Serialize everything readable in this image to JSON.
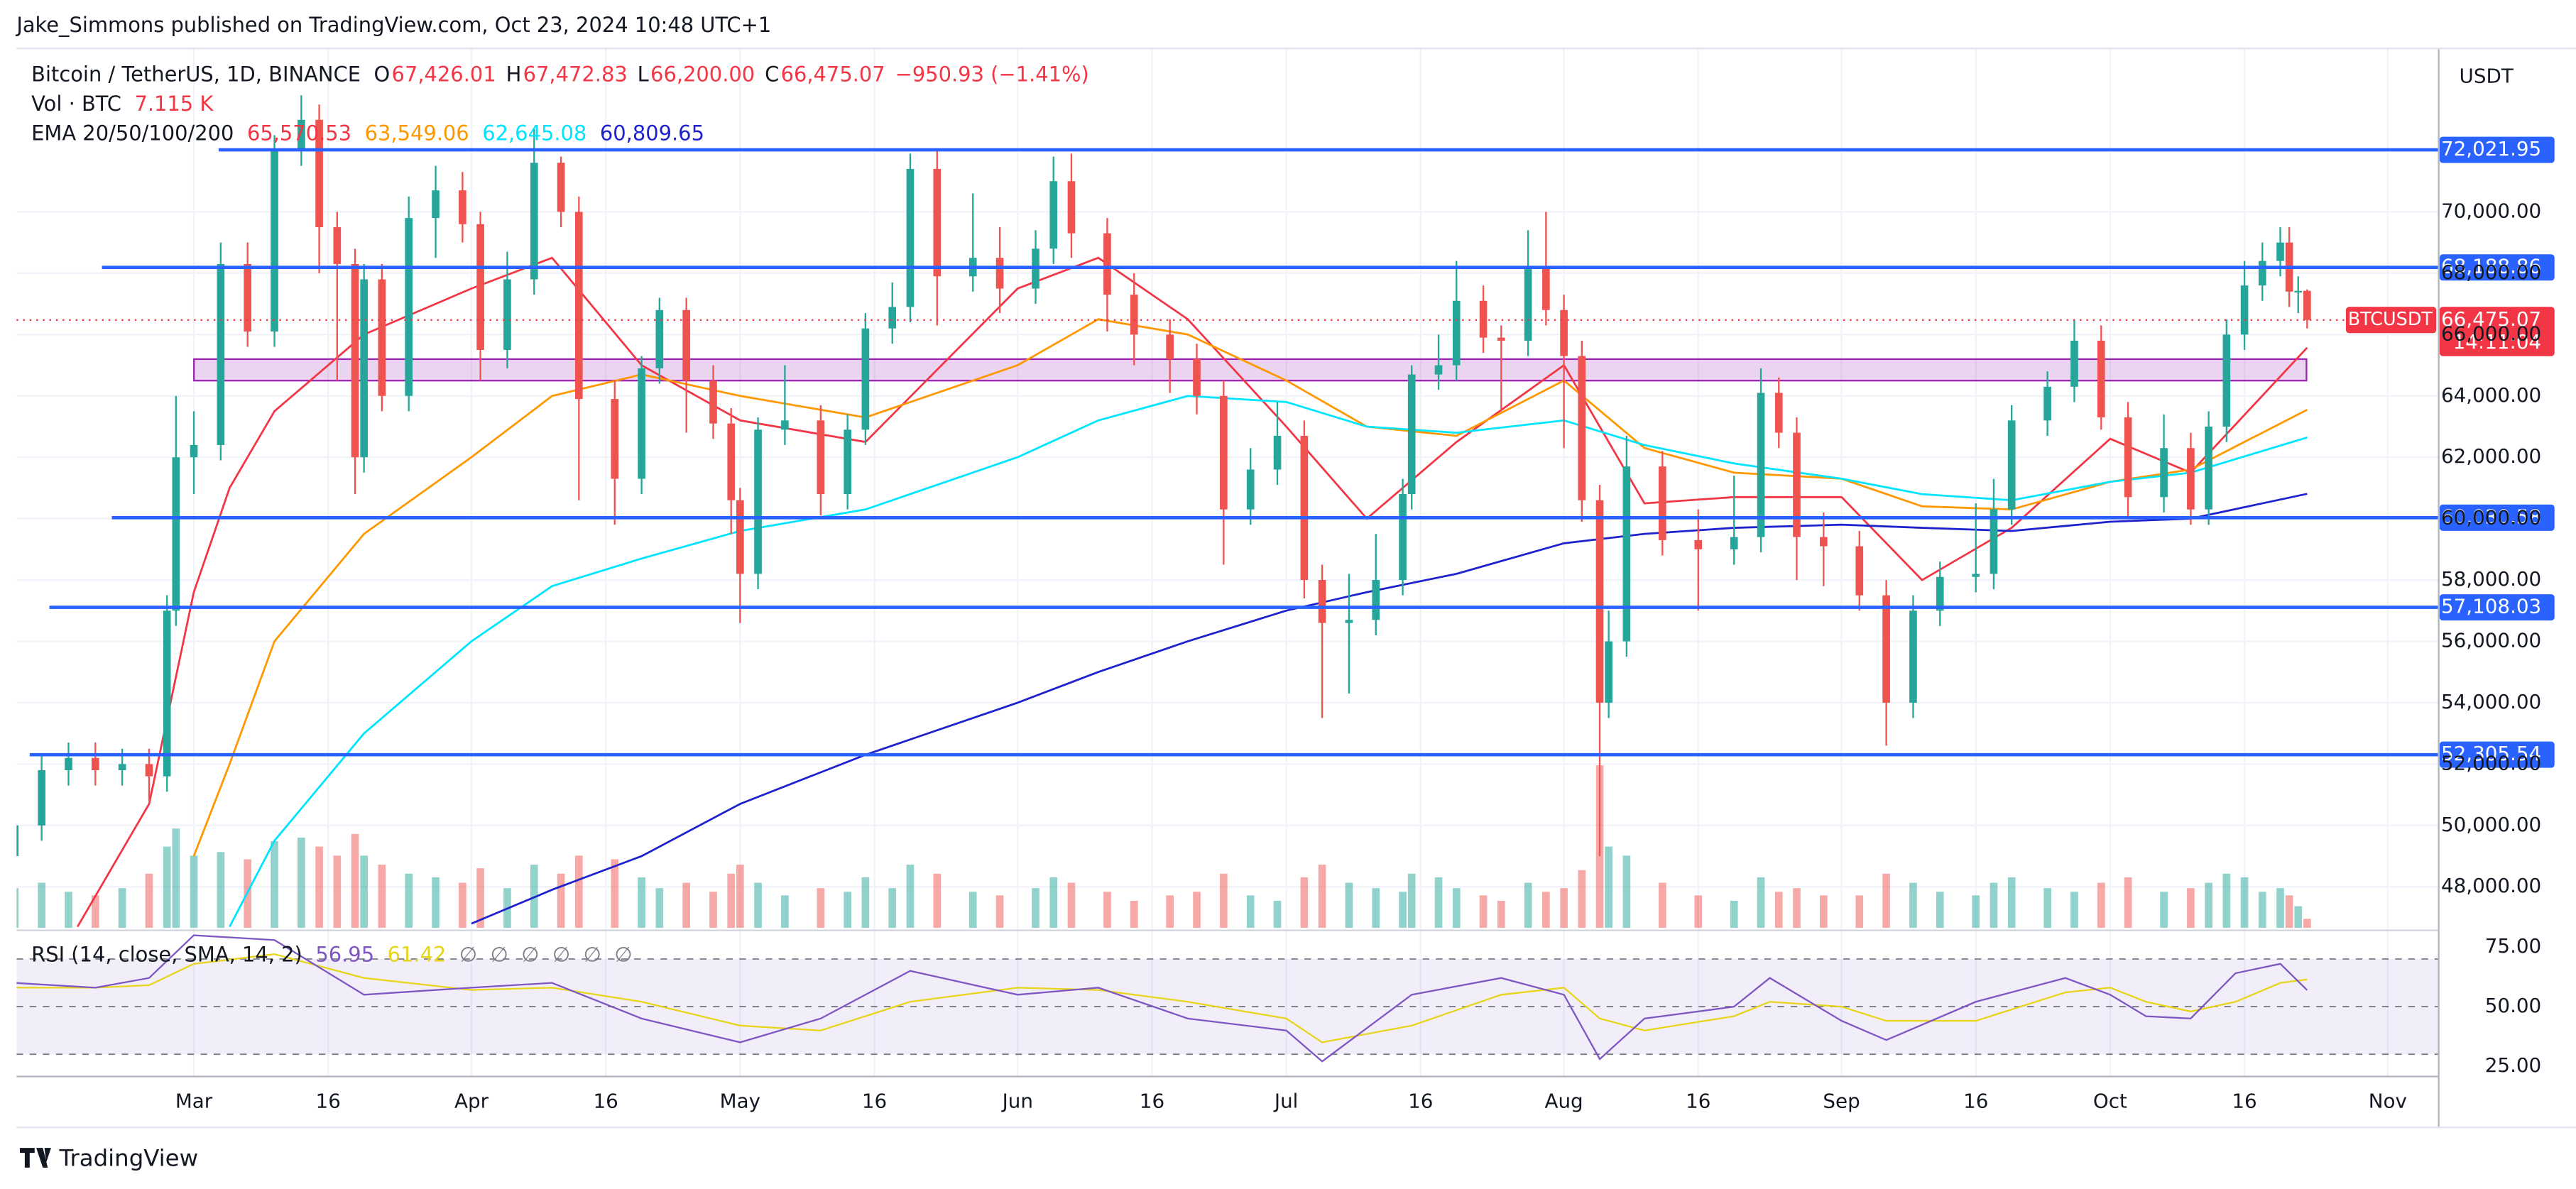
{
  "header": {
    "published": "Jake_Simmons published on TradingView.com, Oct 23, 2024 10:48 UTC+1",
    "symbol": "Bitcoin / TetherUS, 1D, BINANCE",
    "ohlc": [
      {
        "key": "O",
        "value": "67,426.01"
      },
      {
        "key": "H",
        "value": "67,472.83"
      },
      {
        "key": "L",
        "value": "66,200.00"
      },
      {
        "key": "C",
        "value": "66,475.07"
      }
    ],
    "change": "−950.93 (−1.41%)",
    "volume_title": "Vol · BTC",
    "volume_value": "7.115 K",
    "currency": "USDT"
  },
  "chart_data": {
    "type": "candlestick",
    "xlim": [
      41.2,
      311.6
    ],
    "xticks": [
      {
        "value": 61,
        "label": "Mar"
      },
      {
        "value": 76,
        "label": "16"
      },
      {
        "value": 92,
        "label": "Apr"
      },
      {
        "value": 107,
        "label": "16"
      },
      {
        "value": 122,
        "label": "May"
      },
      {
        "value": 137,
        "label": "16"
      },
      {
        "value": 153,
        "label": "Jun"
      },
      {
        "value": 168,
        "label": "16"
      },
      {
        "value": 183,
        "label": "Jul"
      },
      {
        "value": 198,
        "label": "16"
      },
      {
        "value": 214,
        "label": "Aug"
      },
      {
        "value": 229,
        "label": "16"
      },
      {
        "value": 245,
        "label": "Sep"
      },
      {
        "value": 260,
        "label": "16"
      },
      {
        "value": 275,
        "label": "Oct"
      },
      {
        "value": 290,
        "label": "16"
      },
      {
        "value": 306,
        "label": "Nov"
      }
    ],
    "ylim": [
      46660,
      75300
    ],
    "yticks": [
      {
        "value": 48000,
        "label": "48,000.00"
      },
      {
        "value": 50000,
        "label": "50,000.00"
      },
      {
        "value": 52000,
        "label": "52,000.00"
      },
      {
        "value": 54000,
        "label": "54,000.00"
      },
      {
        "value": 56000,
        "label": "56,000.00"
      },
      {
        "value": 58000,
        "label": "58,000.00"
      },
      {
        "value": 60000,
        "label": "60,000.00"
      },
      {
        "value": 62000,
        "label": "62,000.00"
      },
      {
        "value": 64000,
        "label": "64,000.00"
      },
      {
        "value": 66000,
        "label": "66,000.00"
      },
      {
        "value": 68000,
        "label": "68,000.00"
      },
      {
        "value": 70000,
        "label": "70,000.00"
      }
    ],
    "grid": true,
    "up_color": "#26a69a",
    "down_color": "#ef5350",
    "volume_ylim": [
      0,
      100
    ],
    "candles": {
      "x": [
        41,
        44,
        47,
        50,
        53,
        56,
        58,
        59,
        61,
        64,
        67,
        70,
        73,
        75,
        77,
        79,
        80,
        82,
        85,
        88,
        91,
        93,
        96,
        99,
        102,
        104,
        108,
        111,
        113,
        116,
        119,
        121,
        122,
        124,
        127,
        131,
        134,
        136,
        139,
        141,
        144,
        148,
        151,
        155,
        157,
        159,
        163,
        166,
        170,
        173,
        176,
        179,
        182,
        185,
        187,
        190,
        193,
        196,
        197,
        200,
        202,
        205,
        207,
        210,
        212,
        214,
        216,
        218,
        219,
        221,
        225,
        229,
        233,
        236,
        238,
        240,
        243,
        247,
        250,
        253,
        256,
        260,
        262,
        264,
        268,
        271,
        274,
        277,
        281,
        284,
        286,
        288,
        290,
        292,
        294,
        295,
        296,
        297
      ],
      "open": [
        49000,
        50000,
        51800,
        52200,
        51800,
        52000,
        51600,
        57000,
        62000,
        62400,
        68300,
        66100,
        72000,
        73000,
        69500,
        68300,
        62000,
        67800,
        64000,
        69800,
        70700,
        69600,
        65500,
        67800,
        71600,
        70000,
        63900,
        61300,
        64900,
        66800,
        64500,
        63100,
        60600,
        58200,
        62900,
        63200,
        60800,
        62900,
        66200,
        66900,
        71400,
        67900,
        68500,
        67500,
        68800,
        71000,
        69300,
        67300,
        66000,
        65200,
        64000,
        60300,
        61600,
        62700,
        58000,
        56600,
        56700,
        58000,
        60800,
        64700,
        65000,
        67100,
        65900,
        65800,
        68200,
        66800,
        65300,
        60600,
        54000,
        56000,
        61700,
        59300,
        59000,
        59400,
        64100,
        62800,
        59400,
        59100,
        57500,
        54000,
        57000,
        58100,
        58200,
        60300,
        63200,
        64300,
        65800,
        63300,
        60700,
        62300,
        60300,
        63000,
        66000,
        67600,
        68400,
        69000,
        67400,
        67426.01
      ],
      "high": [
        50500,
        52300,
        52700,
        52700,
        52500,
        52500,
        57500,
        64000,
        63500,
        69000,
        69000,
        72500,
        73800,
        73500,
        70000,
        68800,
        68300,
        68300,
        70500,
        71500,
        71300,
        70000,
        68700,
        72700,
        71800,
        70500,
        64500,
        65300,
        67200,
        67200,
        65000,
        63600,
        61000,
        63300,
        65000,
        63700,
        63400,
        66700,
        67700,
        71900,
        72000,
        70600,
        69500,
        69400,
        71800,
        71900,
        69800,
        68000,
        66500,
        65700,
        64500,
        62300,
        63800,
        63200,
        58500,
        58200,
        59500,
        61300,
        65000,
        66000,
        68400,
        67600,
        66300,
        69400,
        70000,
        67300,
        65800,
        61100,
        57000,
        62700,
        62200,
        60300,
        61400,
        64900,
        64600,
        63300,
        60200,
        59600,
        58000,
        57500,
        58600,
        60500,
        61300,
        63700,
        64800,
        66500,
        66300,
        63800,
        63400,
        62800,
        63500,
        66500,
        68400,
        69000,
        69500,
        69500,
        67900,
        67472.83
      ],
      "low": [
        48500,
        49500,
        51300,
        51300,
        51300,
        50800,
        51100,
        56500,
        60800,
        61900,
        65600,
        65600,
        71500,
        68000,
        64500,
        60800,
        61500,
        63500,
        63500,
        68500,
        69000,
        64500,
        64900,
        67300,
        69500,
        60600,
        59800,
        60800,
        64400,
        62800,
        62600,
        59500,
        56600,
        57700,
        62400,
        60100,
        60300,
        62400,
        65700,
        66400,
        66300,
        67400,
        66700,
        67000,
        68300,
        68500,
        66100,
        65000,
        64100,
        63400,
        58500,
        59800,
        61100,
        57400,
        53500,
        54300,
        56200,
        57500,
        60300,
        64200,
        64500,
        65400,
        63500,
        65300,
        66300,
        62300,
        59900,
        49000,
        53500,
        55500,
        58800,
        57000,
        58500,
        58900,
        62300,
        58000,
        57800,
        57000,
        52600,
        53500,
        56500,
        57600,
        57700,
        59800,
        62700,
        63800,
        62900,
        60000,
        60200,
        59800,
        59800,
        62500,
        65500,
        67100,
        67900,
        66900,
        66700,
        66200
      ],
      "close": [
        50000,
        51800,
        52200,
        51800,
        52000,
        51600,
        57000,
        62000,
        62400,
        68300,
        66100,
        72000,
        73000,
        69500,
        68300,
        62000,
        67800,
        64000,
        69800,
        70700,
        69600,
        65500,
        67800,
        71600,
        70000,
        63900,
        61300,
        64900,
        66800,
        64500,
        63100,
        60600,
        58200,
        62900,
        63200,
        60800,
        62900,
        66200,
        66900,
        71400,
        67900,
        68500,
        67500,
        68800,
        71000,
        69300,
        67300,
        66000,
        65200,
        64000,
        60300,
        61600,
        62700,
        58000,
        56600,
        56700,
        58000,
        60800,
        64700,
        65000,
        67100,
        65900,
        65800,
        68200,
        66800,
        65300,
        60600,
        54000,
        56000,
        61700,
        59300,
        59000,
        59400,
        64100,
        62800,
        59400,
        59100,
        57500,
        54000,
        57000,
        58100,
        58200,
        60300,
        63200,
        64300,
        65800,
        63300,
        60700,
        62300,
        60300,
        63000,
        66000,
        67600,
        68400,
        69000,
        67400,
        67426.01,
        66475.07
      ],
      "volume": [
        22,
        25,
        20,
        18,
        22,
        30,
        45,
        55,
        40,
        42,
        38,
        48,
        50,
        45,
        40,
        52,
        40,
        35,
        30,
        28,
        25,
        33,
        22,
        35,
        30,
        40,
        38,
        28,
        22,
        25,
        20,
        30,
        35,
        25,
        18,
        22,
        20,
        28,
        22,
        35,
        30,
        20,
        18,
        22,
        28,
        25,
        20,
        15,
        18,
        20,
        30,
        18,
        15,
        28,
        35,
        25,
        22,
        20,
        30,
        28,
        22,
        18,
        15,
        25,
        20,
        22,
        32,
        90,
        45,
        40,
        25,
        18,
        15,
        28,
        20,
        22,
        18,
        18,
        30,
        25,
        20,
        18,
        25,
        28,
        22,
        20,
        25,
        28,
        20,
        22,
        25,
        30,
        28,
        20,
        22,
        18,
        12,
        5
      ]
    },
    "ema_title": "EMA 20/50/100/200",
    "ema_x": [
      48,
      56,
      61,
      65,
      70,
      80,
      92,
      101,
      111,
      122,
      136,
      153,
      162,
      172,
      183,
      192,
      202,
      214,
      223,
      233,
      245,
      254,
      264,
      275,
      284,
      297
    ],
    "series": [
      {
        "color": "#f23645",
        "legend_value": "65,570.53",
        "values": [
          46700,
          50700,
          57600,
          61000,
          63500,
          66000,
          67500,
          68500,
          65000,
          63200,
          62500,
          67500,
          68500,
          66500,
          63000,
          60000,
          62500,
          65000,
          60500,
          60700,
          60700,
          58000,
          59700,
          62600,
          61500,
          65570.53
        ]
      },
      {
        "color": "#ff9800",
        "legend_value": "63,549.06",
        "values": [
          null,
          null,
          49000,
          52000,
          56000,
          59500,
          62000,
          64000,
          64700,
          64000,
          63300,
          65000,
          66500,
          66000,
          64500,
          63000,
          62700,
          64500,
          62300,
          61500,
          61300,
          60400,
          60300,
          61200,
          61600,
          63549.06
        ]
      },
      {
        "color": "#00e5ff",
        "legend_value": "62,645.08",
        "values": [
          null,
          null,
          null,
          46700,
          49500,
          53000,
          56000,
          57800,
          58700,
          59600,
          60300,
          62000,
          63200,
          64000,
          63800,
          63000,
          62800,
          63200,
          62400,
          61800,
          61300,
          60800,
          60600,
          61200,
          61500,
          62645.08
        ]
      },
      {
        "color": "#1e22cc",
        "legend_value": "60,809.65",
        "values": [
          null,
          null,
          null,
          null,
          null,
          null,
          46800,
          47900,
          49000,
          50700,
          52300,
          54000,
          55000,
          56000,
          57000,
          57600,
          58200,
          59200,
          59500,
          59700,
          59800,
          59700,
          59600,
          59900,
          60000,
          60809.65
        ]
      }
    ],
    "levels": [
      {
        "value": 72021.95,
        "label": "72,021.95"
      },
      {
        "value": 68188.86,
        "label": "68,188.86"
      },
      {
        "value": 60030.58,
        "label": "60,030.58"
      },
      {
        "value": 57108.03,
        "label": "57,108.03"
      },
      {
        "value": 52305.54,
        "label": "52,305.54"
      }
    ],
    "level_color": "#2962ff",
    "zone": {
      "top": 65200,
      "bottom": 64500,
      "color": "#9c27b0"
    },
    "last_price": {
      "value": 66475.07,
      "symbol": "BTCUSDT",
      "label": "66,475.07",
      "countdown": "14:11:04",
      "color": "#f23645"
    },
    "rsi": {
      "title": "RSI (14, close, SMA, 14, 2)",
      "value_label": "56.95",
      "sma_label": "61.42",
      "empty": [
        "∅",
        "∅",
        "∅",
        "∅",
        "∅",
        "∅"
      ],
      "ylim": [
        21,
        81
      ],
      "yticks": [
        {
          "value": 25,
          "label": "25.00"
        },
        {
          "value": 50,
          "label": "50.00"
        },
        {
          "value": 75,
          "label": "75.00"
        }
      ],
      "bands": [
        30,
        50,
        70
      ],
      "color": "#7e57c2",
      "sma_color": "#e6d51c",
      "x": [
        41,
        50,
        56,
        61,
        70,
        80,
        92,
        101,
        111,
        122,
        131,
        141,
        153,
        162,
        172,
        183,
        187,
        197,
        207,
        214,
        218,
        223,
        233,
        237,
        245,
        250,
        260,
        270,
        275,
        279,
        284,
        289,
        294,
        297
      ],
      "values": [
        60,
        58,
        62,
        80,
        78,
        55,
        58,
        60,
        45,
        35,
        45,
        65,
        55,
        58,
        45,
        40,
        27,
        55,
        62,
        55,
        28,
        45,
        50,
        62,
        44,
        36,
        52,
        62,
        55,
        46,
        45,
        64,
        68,
        56.95
      ],
      "sma": [
        58,
        58,
        59,
        68,
        72,
        62,
        57,
        58,
        52,
        42,
        40,
        52,
        58,
        57,
        52,
        45,
        35,
        42,
        55,
        58,
        45,
        40,
        46,
        52,
        50,
        44,
        44,
        56,
        58,
        52,
        48,
        52,
        60,
        61.42
      ]
    }
  },
  "footer": {
    "brand": "TradingView"
  }
}
